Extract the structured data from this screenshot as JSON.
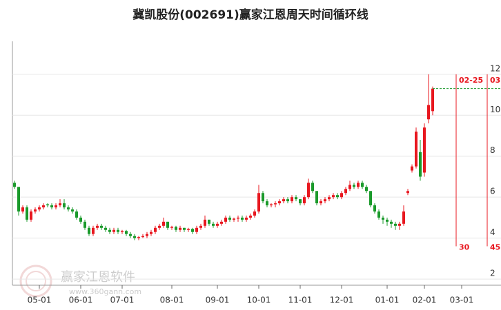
{
  "chart_data": {
    "type": "candlestick",
    "title": "冀凯股份(002691)赢家江恩周天时间循环线",
    "watermark": "赢家江恩软件",
    "watermark_url": "www.360gann.com",
    "categories": [
      null,
      null,
      null,
      null,
      null,
      null,
      "05-01",
      null,
      null,
      null,
      null,
      null,
      null,
      null,
      null,
      null,
      "06-01",
      null,
      null,
      null,
      null,
      null,
      null,
      null,
      null,
      null,
      "07-01",
      null,
      null,
      null,
      null,
      null,
      null,
      null,
      null,
      null,
      null,
      null,
      "08-01",
      null,
      null,
      null,
      null,
      null,
      null,
      null,
      null,
      null,
      null,
      "09-01",
      null,
      null,
      null,
      null,
      null,
      null,
      null,
      null,
      null,
      "10-01",
      null,
      null,
      null,
      null,
      null,
      null,
      null,
      null,
      null,
      "11-01",
      null,
      null,
      null,
      null,
      null,
      null,
      null,
      null,
      null,
      "12-01",
      null,
      null,
      null,
      null,
      null,
      null,
      null,
      null,
      null,
      null,
      "01-01",
      null,
      null,
      null,
      null,
      null,
      null,
      null,
      null,
      "02-01",
      null,
      null,
      null,
      null,
      null,
      null,
      null,
      null,
      "03-01",
      null,
      null,
      null,
      null,
      null,
      null
    ],
    "open": [
      6.7,
      6.5,
      5.3,
      5.5,
      4.9,
      5.3,
      5.4,
      5.5,
      5.65,
      5.6,
      5.5,
      5.6,
      5.7,
      5.5,
      5.4,
      5.3,
      5.0,
      4.8,
      4.5,
      4.2,
      4.5,
      4.6,
      4.5,
      4.4,
      4.3,
      4.4,
      4.3,
      4.35,
      4.2,
      4.1,
      4.0,
      4.05,
      4.1,
      4.2,
      4.3,
      4.5,
      4.6,
      4.8,
      4.5,
      4.55,
      4.4,
      4.5,
      4.4,
      4.45,
      4.3,
      4.5,
      4.6,
      4.9,
      4.7,
      4.6,
      4.7,
      4.8,
      5.0,
      4.9,
      4.95,
      5.0,
      4.9,
      5.0,
      5.1,
      5.3,
      6.2,
      5.8,
      5.6,
      5.65,
      5.7,
      5.8,
      5.9,
      5.8,
      6.0,
      5.9,
      5.7,
      6.0,
      6.7,
      6.3,
      5.7,
      5.8,
      5.9,
      6.0,
      6.1,
      6.0,
      6.2,
      6.4,
      6.6,
      6.5,
      6.7,
      6.5,
      6.3,
      5.6,
      5.3,
      5.0,
      4.9,
      4.8,
      4.7,
      4.6,
      4.7,
      6.2,
      7.3,
      7.5,
      8.2,
      7.2,
      9.8,
      10.2,
      null,
      null,
      null,
      null,
      null,
      null,
      null,
      null,
      null,
      null,
      null,
      null,
      null
    ],
    "high": [
      6.8,
      6.5,
      5.6,
      5.6,
      5.4,
      5.5,
      5.6,
      5.7,
      5.7,
      5.7,
      5.7,
      5.9,
      5.9,
      5.6,
      5.5,
      5.4,
      5.1,
      4.9,
      4.6,
      4.6,
      4.7,
      4.7,
      4.6,
      4.5,
      4.5,
      4.5,
      4.4,
      4.4,
      4.3,
      4.2,
      4.1,
      4.2,
      4.3,
      4.4,
      4.6,
      4.7,
      5.0,
      4.8,
      4.6,
      4.6,
      4.6,
      4.5,
      4.5,
      4.5,
      4.6,
      4.7,
      5.1,
      4.9,
      4.8,
      4.8,
      4.9,
      5.1,
      5.1,
      5.0,
      5.1,
      5.1,
      5.1,
      5.2,
      5.4,
      6.6,
      6.3,
      5.9,
      5.7,
      5.8,
      5.9,
      6.0,
      6.0,
      6.1,
      6.1,
      5.9,
      6.1,
      6.9,
      6.8,
      6.3,
      5.9,
      6.0,
      6.1,
      6.2,
      6.2,
      6.3,
      6.5,
      6.8,
      6.7,
      6.8,
      6.8,
      6.6,
      6.3,
      5.7,
      5.4,
      5.1,
      5.0,
      4.9,
      4.8,
      4.8,
      5.6,
      6.4,
      7.6,
      9.4,
      8.8,
      9.6,
      12.0,
      11.4,
      null,
      null,
      null,
      null,
      null,
      null,
      null,
      null,
      null,
      null,
      null,
      null,
      null
    ],
    "low": [
      6.4,
      5.1,
      5.2,
      4.8,
      4.8,
      5.2,
      5.3,
      5.4,
      5.5,
      5.4,
      5.4,
      5.5,
      5.4,
      5.3,
      5.2,
      4.9,
      4.7,
      4.4,
      4.1,
      4.1,
      4.4,
      4.4,
      4.3,
      4.2,
      4.2,
      4.2,
      4.2,
      4.1,
      4.0,
      3.9,
      3.9,
      4.0,
      4.0,
      4.1,
      4.2,
      4.4,
      4.5,
      4.4,
      4.4,
      4.3,
      4.3,
      4.3,
      4.3,
      4.2,
      4.2,
      4.4,
      4.5,
      4.6,
      4.5,
      4.5,
      4.6,
      4.7,
      4.8,
      4.8,
      4.8,
      4.8,
      4.8,
      4.9,
      5.0,
      5.2,
      5.7,
      5.5,
      5.5,
      5.5,
      5.6,
      5.7,
      5.7,
      5.7,
      5.8,
      5.6,
      5.6,
      5.9,
      6.2,
      5.6,
      5.6,
      5.7,
      5.8,
      5.9,
      5.9,
      5.9,
      6.1,
      6.3,
      6.4,
      6.4,
      6.4,
      6.2,
      5.5,
      5.2,
      4.9,
      4.7,
      4.6,
      4.5,
      4.4,
      4.4,
      4.6,
      6.1,
      7.2,
      7.4,
      6.8,
      7.0,
      9.6,
      10.0,
      null,
      null,
      null,
      null,
      null,
      null,
      null,
      null,
      null,
      null,
      null,
      null,
      null
    ],
    "close": [
      6.5,
      5.3,
      5.5,
      4.9,
      5.3,
      5.4,
      5.5,
      5.6,
      5.6,
      5.5,
      5.6,
      5.7,
      5.5,
      5.4,
      5.3,
      5.0,
      4.8,
      4.5,
      4.2,
      4.5,
      4.6,
      4.5,
      4.4,
      4.3,
      4.4,
      4.3,
      4.35,
      4.2,
      4.1,
      4.0,
      4.05,
      4.1,
      4.2,
      4.3,
      4.5,
      4.6,
      4.8,
      4.5,
      4.55,
      4.4,
      4.5,
      4.4,
      4.45,
      4.3,
      4.5,
      4.6,
      4.9,
      4.7,
      4.6,
      4.7,
      4.8,
      5.0,
      4.9,
      4.95,
      5.0,
      4.9,
      5.0,
      5.1,
      5.3,
      6.2,
      5.8,
      5.6,
      5.65,
      5.7,
      5.8,
      5.9,
      5.8,
      6.0,
      5.9,
      5.7,
      6.0,
      6.7,
      6.3,
      5.7,
      5.8,
      5.9,
      6.0,
      6.1,
      6.0,
      6.2,
      6.4,
      6.6,
      6.5,
      6.7,
      6.5,
      6.3,
      5.6,
      5.3,
      5.0,
      4.9,
      4.8,
      4.7,
      4.6,
      4.7,
      5.3,
      6.3,
      7.5,
      9.2,
      7.0,
      9.4,
      10.5,
      11.3,
      null,
      null,
      null,
      null,
      null,
      null,
      null,
      null,
      null,
      null,
      null,
      null,
      null
    ],
    "up_color": "#e8171f",
    "down_color": "#1a9a2b",
    "cycle_color": "#e8171f",
    "ylim": [
      1.7,
      12.6
    ],
    "yticks": [
      2,
      4,
      6,
      8,
      10,
      12
    ],
    "grid": true,
    "cycles": [
      {
        "label": "02-25",
        "count": 30
      },
      {
        "label": "03",
        "count": 45
      }
    ]
  }
}
